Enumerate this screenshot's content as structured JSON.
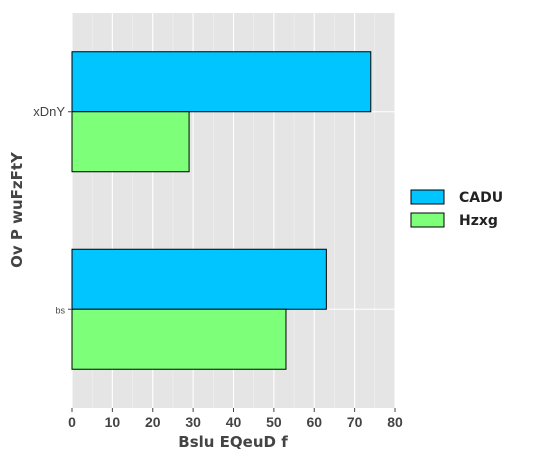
{
  "chart_data": {
    "type": "bar",
    "orientation": "horizontal",
    "categories": [
      "xDnY",
      "bs"
    ],
    "series": [
      {
        "name": "CADU",
        "color": "#00c5ff",
        "values": [
          74,
          63
        ]
      },
      {
        "name": "Hzxg",
        "color": "#7dff7a",
        "values": [
          29,
          53
        ]
      }
    ],
    "xlabel": "Bslu EQeuD f",
    "ylabel": "Ov P wuFzFtY",
    "xlim": [
      0,
      80
    ],
    "xticks": [
      0,
      10,
      20,
      30,
      40,
      50,
      60,
      70,
      80
    ],
    "grid": true,
    "legend_position": "right"
  }
}
